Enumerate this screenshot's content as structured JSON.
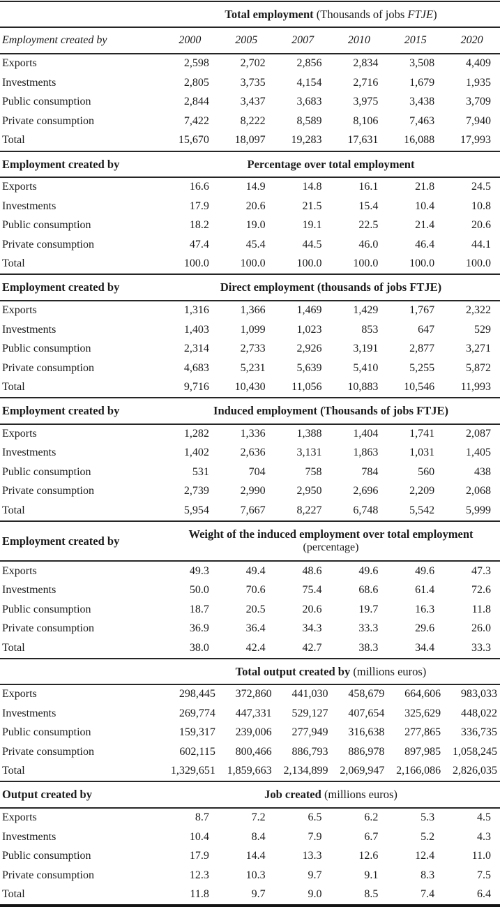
{
  "colors": {
    "text": "#1b1b1b",
    "rule": "#262626",
    "background": "#ffffff"
  },
  "table": {
    "columns": [
      "2000",
      "2005",
      "2007",
      "2010",
      "2015",
      "2020"
    ],
    "sections": [
      {
        "id": "total-employment",
        "left_label": "",
        "title": {
          "bold": "Total employment",
          "regular_prefix": " (Thousands of jobs ",
          "italic": "FTJE",
          "regular_suffix": ")"
        },
        "years_row": {
          "left_label": "Employment created by"
        },
        "rows": [
          {
            "label": "Exports",
            "values": [
              "2,598",
              "2,702",
              "2,856",
              "2,834",
              "3,508",
              "4,409"
            ]
          },
          {
            "label": "Investments",
            "values": [
              "2,805",
              "3,735",
              "4,154",
              "2,716",
              "1,679",
              "1,935"
            ]
          },
          {
            "label": "Public consumption",
            "values": [
              "2,844",
              "3,437",
              "3,683",
              "3,975",
              "3,438",
              "3,709"
            ]
          },
          {
            "label": "Private consumption",
            "values": [
              "7,422",
              "8,222",
              "8,589",
              "8,106",
              "7,463",
              "7,940"
            ]
          },
          {
            "label": "Total",
            "values": [
              "15,670",
              "18,097",
              "19,283",
              "17,631",
              "16,088",
              "17,993"
            ]
          }
        ]
      },
      {
        "id": "percentage-over-total-employment",
        "left_label": "Employment created by",
        "title": {
          "bold": "Percentage over total employment"
        },
        "rows": [
          {
            "label": "Exports",
            "values": [
              "16.6",
              "14.9",
              "14.8",
              "16.1",
              "21.8",
              "24.5"
            ]
          },
          {
            "label": "Investments",
            "values": [
              "17.9",
              "20.6",
              "21.5",
              "15.4",
              "10.4",
              "10.8"
            ]
          },
          {
            "label": "Public consumption",
            "values": [
              "18.2",
              "19.0",
              "19.1",
              "22.5",
              "21.4",
              "20.6"
            ]
          },
          {
            "label": "Private consumption",
            "values": [
              "47.4",
              "45.4",
              "44.5",
              "46.0",
              "46.4",
              "44.1"
            ]
          },
          {
            "label": "Total",
            "values": [
              "100.0",
              "100.0",
              "100.0",
              "100.0",
              "100.0",
              "100.0"
            ]
          }
        ]
      },
      {
        "id": "direct-employment",
        "left_label": "Employment created by",
        "title": {
          "bold": "Direct employment (thousands of jobs FTJE)"
        },
        "rows": [
          {
            "label": "Exports",
            "values": [
              "1,316",
              "1,366",
              "1,469",
              "1,429",
              "1,767",
              "2,322"
            ]
          },
          {
            "label": "Investments",
            "values": [
              "1,403",
              "1,099",
              "1,023",
              "853",
              "647",
              "529"
            ]
          },
          {
            "label": "Public consumption",
            "values": [
              "2,314",
              "2,733",
              "2,926",
              "3,191",
              "2,877",
              "3,271"
            ]
          },
          {
            "label": "Private consumption",
            "values": [
              "4,683",
              "5,231",
              "5,639",
              "5,410",
              "5,255",
              "5,872"
            ]
          },
          {
            "label": "Total",
            "values": [
              "9,716",
              "10,430",
              "11,056",
              "10,883",
              "10,546",
              "11,993"
            ]
          }
        ]
      },
      {
        "id": "induced-employment",
        "left_label": "Employment created by",
        "title": {
          "bold": "Induced employment (Thousands of jobs FTJE)"
        },
        "rows": [
          {
            "label": "Exports",
            "values": [
              "1,282",
              "1,336",
              "1,388",
              "1,404",
              "1,741",
              "2,087"
            ]
          },
          {
            "label": "Investments",
            "values": [
              "1,402",
              "2,636",
              "3,131",
              "1,863",
              "1,031",
              "1,405"
            ]
          },
          {
            "label": "Public consumption",
            "values": [
              "531",
              "704",
              "758",
              "784",
              "560",
              "438"
            ]
          },
          {
            "label": "Private consumption",
            "values": [
              "2,739",
              "2,990",
              "2,950",
              "2,696",
              "2,209",
              "2,068"
            ]
          },
          {
            "label": "Total",
            "values": [
              "5,954",
              "7,667",
              "8,227",
              "6,748",
              "5,542",
              "5,999"
            ]
          }
        ]
      },
      {
        "id": "induced-weight",
        "left_label": "Employment created by",
        "title": {
          "bold": "Weight of the induced employment over total employment",
          "line2": "(percentage)"
        },
        "rows": [
          {
            "label": "Exports",
            "values": [
              "49.3",
              "49.4",
              "48.6",
              "49.6",
              "49.6",
              "47.3"
            ]
          },
          {
            "label": "Investments",
            "values": [
              "50.0",
              "70.6",
              "75.4",
              "68.6",
              "61.4",
              "72.6"
            ]
          },
          {
            "label": "Public consumption",
            "values": [
              "18.7",
              "20.5",
              "20.6",
              "19.7",
              "16.3",
              "11.8"
            ]
          },
          {
            "label": "Private consumption",
            "values": [
              "36.9",
              "36.4",
              "34.3",
              "33.3",
              "29.6",
              "26.0"
            ]
          },
          {
            "label": "Total",
            "values": [
              "38.0",
              "42.4",
              "42.7",
              "38.3",
              "34.4",
              "33.3"
            ]
          }
        ]
      },
      {
        "id": "total-output",
        "left_label": "",
        "title": {
          "bold": "Total output created by",
          "regular_suffix": " (millions euros)"
        },
        "rows": [
          {
            "label": "Exports",
            "values": [
              "298,445",
              "372,860",
              "441,030",
              "458,679",
              "664,606",
              "983,033"
            ]
          },
          {
            "label": "Investments",
            "values": [
              "269,774",
              "447,331",
              "529,127",
              "407,654",
              "325,629",
              "448,022"
            ]
          },
          {
            "label": "Public consumption",
            "values": [
              "159,317",
              "239,006",
              "277,949",
              "316,638",
              "277,865",
              "336,735"
            ]
          },
          {
            "label": "Private consumption",
            "values": [
              "602,115",
              "800,466",
              "886,793",
              "886,978",
              "897,985",
              "1,058,245"
            ]
          },
          {
            "label": "Total",
            "values": [
              "1,329,651",
              "1,859,663",
              "2,134,899",
              "2,069,947",
              "2,166,086",
              "2,826,035"
            ]
          }
        ]
      },
      {
        "id": "job-created",
        "left_label": "Output created by",
        "title": {
          "bold": "Job created",
          "regular_suffix": " (millions euros)"
        },
        "rows": [
          {
            "label": "Exports",
            "values": [
              "8.7",
              "7.2",
              "6.5",
              "6.2",
              "5.3",
              "4.5"
            ]
          },
          {
            "label": "Investments",
            "values": [
              "10.4",
              "8.4",
              "7.9",
              "6.7",
              "5.2",
              "4.3"
            ]
          },
          {
            "label": "Public consumption",
            "values": [
              "17.9",
              "14.4",
              "13.3",
              "12.6",
              "12.4",
              "11.0"
            ]
          },
          {
            "label": "Private consumption",
            "values": [
              "12.3",
              "10.3",
              "9.7",
              "9.1",
              "8.3",
              "7.5"
            ]
          },
          {
            "label": "Total",
            "values": [
              "11.8",
              "9.7",
              "9.0",
              "8.5",
              "7.4",
              "6.4"
            ]
          }
        ]
      }
    ]
  }
}
